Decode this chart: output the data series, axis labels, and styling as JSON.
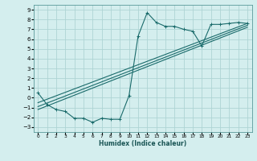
{
  "xlabel": "Humidex (Indice chaleur)",
  "bg_color": "#d4eeee",
  "grid_color": "#aed4d4",
  "line_color": "#1a6b6b",
  "xlim": [
    -0.5,
    23.5
  ],
  "ylim": [
    -3.5,
    9.5
  ],
  "xticks": [
    0,
    1,
    2,
    3,
    4,
    5,
    6,
    7,
    8,
    9,
    10,
    11,
    12,
    13,
    14,
    15,
    16,
    17,
    18,
    19,
    20,
    21,
    22,
    23
  ],
  "yticks": [
    -3,
    -2,
    -1,
    0,
    1,
    2,
    3,
    4,
    5,
    6,
    7,
    8,
    9
  ],
  "curve_data": [
    [
      0,
      0.5
    ],
    [
      1,
      -0.7
    ],
    [
      2,
      -1.2
    ],
    [
      3,
      -1.4
    ],
    [
      4,
      -2.1
    ],
    [
      5,
      -2.1
    ],
    [
      6,
      -2.5
    ],
    [
      7,
      -2.1
    ],
    [
      8,
      -2.2
    ],
    [
      9,
      -2.2
    ],
    [
      10,
      0.2
    ],
    [
      11,
      6.3
    ],
    [
      12,
      8.7
    ],
    [
      13,
      7.7
    ],
    [
      14,
      7.3
    ],
    [
      15,
      7.3
    ],
    [
      16,
      7.0
    ],
    [
      17,
      6.8
    ],
    [
      18,
      5.3
    ],
    [
      19,
      7.5
    ],
    [
      20,
      7.5
    ],
    [
      21,
      7.6
    ],
    [
      22,
      7.7
    ],
    [
      23,
      7.6
    ]
  ],
  "linear_lines": [
    [
      [
        0,
        -0.5
      ],
      [
        23,
        7.6
      ]
    ],
    [
      [
        0,
        -0.9
      ],
      [
        23,
        7.4
      ]
    ],
    [
      [
        0,
        -1.2
      ],
      [
        23,
        7.2
      ]
    ]
  ]
}
